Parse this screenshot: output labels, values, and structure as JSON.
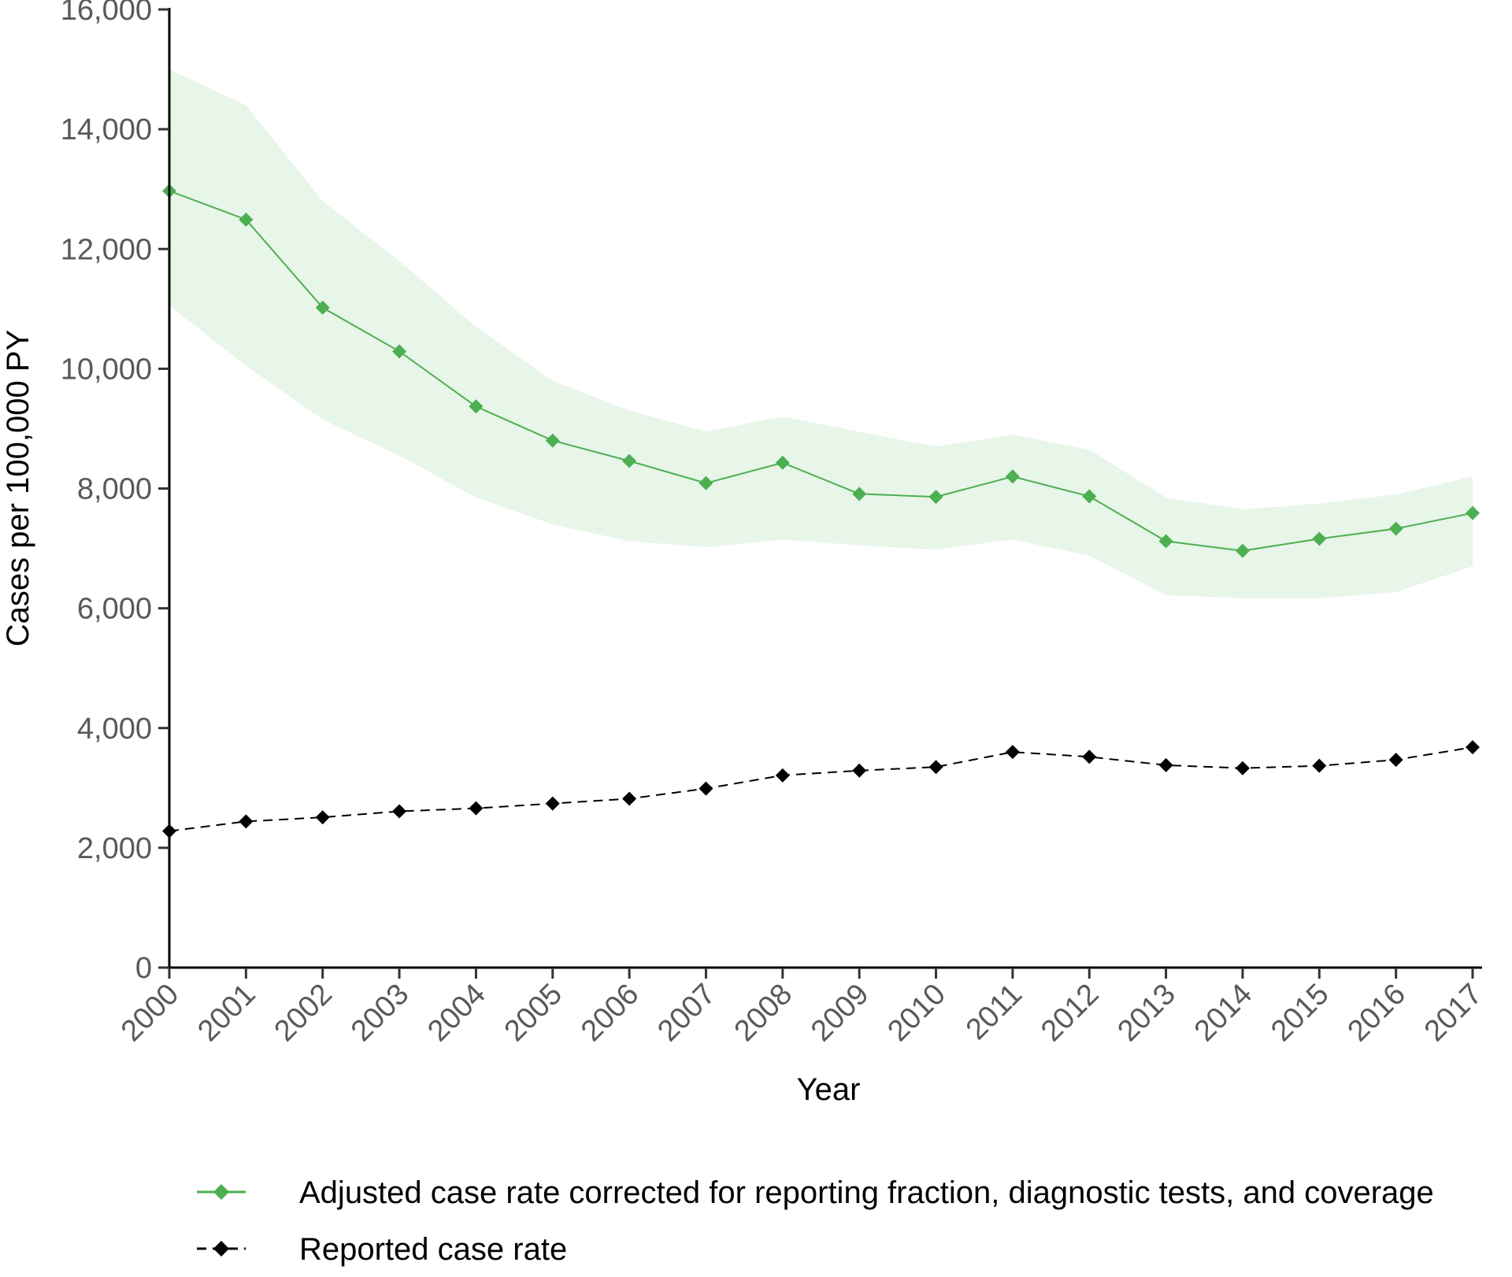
{
  "chart_data": {
    "type": "line",
    "title": "",
    "xlabel": "Year",
    "ylabel": "Cases per 100,000 PY",
    "ylim": [
      0,
      16000
    ],
    "grid": false,
    "legend_position": "bottom",
    "x": [
      2000,
      2001,
      2002,
      2003,
      2004,
      2005,
      2006,
      2007,
      2008,
      2009,
      2010,
      2011,
      2012,
      2013,
      2014,
      2015,
      2016,
      2017
    ],
    "x_tick_labels": [
      "2000",
      "2001",
      "2002",
      "2003",
      "2004",
      "2005",
      "2006",
      "2007",
      "2008",
      "2009",
      "2010",
      "2011",
      "2012",
      "2013",
      "2014",
      "2015",
      "2016",
      "2017"
    ],
    "y_ticks": [
      0,
      2000,
      4000,
      6000,
      8000,
      10000,
      12000,
      14000,
      16000
    ],
    "y_tick_labels": [
      "0",
      "2,000",
      "4,000",
      "6,000",
      "8,000",
      "10,000",
      "12,000",
      "14,000",
      "16,000"
    ],
    "series": [
      {
        "name": "Adjusted case rate corrected for reporting fraction, diagnostic tests, and coverage",
        "color": "#4caf50",
        "line_style": "solid",
        "marker": "diamond",
        "values": [
          12970,
          12490,
          11020,
          10290,
          9370,
          8800,
          8460,
          8090,
          8430,
          7910,
          7860,
          8200,
          7870,
          7120,
          6960,
          7160,
          7330,
          7590
        ],
        "band": {
          "color": "#e8f5e9",
          "lower": [
            11050,
            10050,
            9150,
            8550,
            7850,
            7400,
            7120,
            7020,
            7150,
            7050,
            6980,
            7150,
            6880,
            6220,
            6170,
            6170,
            6270,
            6700
          ],
          "upper": [
            15000,
            14400,
            12800,
            11800,
            10700,
            9800,
            9300,
            8950,
            9200,
            8950,
            8700,
            8900,
            8650,
            7850,
            7650,
            7750,
            7900,
            8200
          ]
        }
      },
      {
        "name": "Reported case rate",
        "color": "#000000",
        "line_style": "dashed",
        "marker": "diamond",
        "values": [
          2280,
          2440,
          2510,
          2610,
          2660,
          2740,
          2820,
          2990,
          3210,
          3290,
          3350,
          3600,
          3520,
          3380,
          3330,
          3370,
          3470,
          3680
        ]
      }
    ]
  }
}
